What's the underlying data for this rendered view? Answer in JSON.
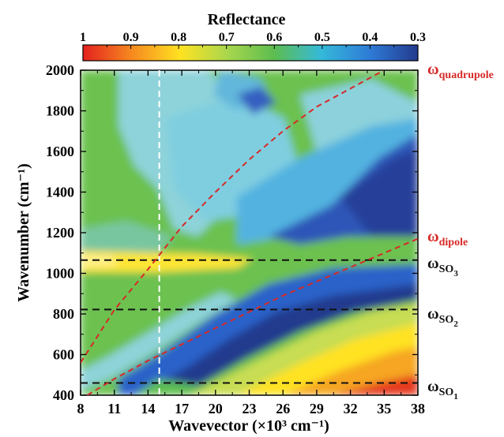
{
  "chart_data": {
    "type": "heatmap",
    "title": "",
    "xlabel": "Wavevector (×10³ cm⁻¹)",
    "ylabel": "Wavenumber (cm⁻¹)",
    "xlim": [
      8,
      38
    ],
    "ylim": [
      400,
      2000
    ],
    "x_ticks": [
      "8",
      "11",
      "14",
      "17",
      "20",
      "23",
      "26",
      "29",
      "32",
      "35",
      "38"
    ],
    "y_ticks": [
      "400",
      "600",
      "800",
      "1000",
      "1200",
      "1400",
      "1600",
      "1800",
      "2000"
    ],
    "colorbar": {
      "label": "Reflectance",
      "ticks": [
        "1",
        "0.9",
        "0.8",
        "0.7",
        "0.6",
        "0.5",
        "0.4",
        "0.3"
      ],
      "range": [
        1,
        0.3
      ],
      "colors": [
        "#e4211f",
        "#f5851f",
        "#ffe222",
        "#a9d74d",
        "#5dbd4f",
        "#35b9d9",
        "#2e7ad6",
        "#233a8d"
      ]
    },
    "dipole_curve": [
      [
        8.6,
        400
      ],
      [
        11,
        480
      ],
      [
        14,
        570
      ],
      [
        17,
        650
      ],
      [
        20,
        730
      ],
      [
        23,
        810
      ],
      [
        26,
        890
      ],
      [
        29,
        960
      ],
      [
        32,
        1030
      ],
      [
        35,
        1100
      ],
      [
        38,
        1170
      ]
    ],
    "quadrupole_curve": [
      [
        8,
        560
      ],
      [
        11,
        820
      ],
      [
        14,
        1020
      ],
      [
        17,
        1230
      ],
      [
        20,
        1400
      ],
      [
        23,
        1560
      ],
      [
        26,
        1700
      ],
      [
        29,
        1820
      ],
      [
        32,
        1910
      ],
      [
        35,
        2000
      ]
    ],
    "horizontal_lines": [
      {
        "y": 1065,
        "label_main": "ω",
        "label_sub": "SO",
        "label_sub2": "3"
      },
      {
        "y": 822,
        "label_main": "ω",
        "label_sub": "SO",
        "label_sub2": "2"
      },
      {
        "y": 460,
        "label_main": "ω",
        "label_sub": "SO",
        "label_sub2": "1"
      }
    ],
    "vertical_line": {
      "x": 15
    },
    "curve_labels": [
      {
        "main": "ω",
        "sub": "quadrupole",
        "color": "#d62a27"
      },
      {
        "main": "ω",
        "sub": "dipole",
        "color": "#d62a27"
      }
    ]
  }
}
